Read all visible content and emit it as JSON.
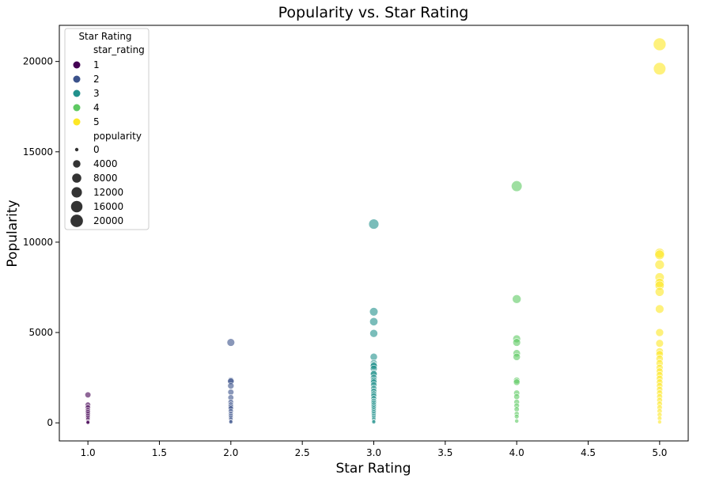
{
  "chart_data": {
    "type": "scatter",
    "title": "Popularity vs. Star Rating",
    "xlabel": "Star Rating",
    "ylabel": "Popularity",
    "xlim": [
      0.8,
      5.2
    ],
    "ylim": [
      -1000,
      22000
    ],
    "xticks": [
      1.0,
      1.5,
      2.0,
      2.5,
      3.0,
      3.5,
      4.0,
      4.5,
      5.0
    ],
    "xtick_labels": [
      "1.0",
      "1.5",
      "2.0",
      "2.5",
      "3.0",
      "3.5",
      "4.0",
      "4.5",
      "5.0"
    ],
    "yticks": [
      0,
      5000,
      10000,
      15000,
      20000
    ],
    "ytick_labels": [
      "0",
      "5000",
      "10000",
      "15000",
      "20000"
    ],
    "grid": false,
    "legend": {
      "title": "Star Rating",
      "placement": "top-left",
      "hue_title": "star_rating",
      "hue_entries": [
        {
          "label": "1",
          "color": "#440154"
        },
        {
          "label": "2",
          "color": "#3b528b"
        },
        {
          "label": "3",
          "color": "#21918c"
        },
        {
          "label": "4",
          "color": "#5ec962"
        },
        {
          "label": "5",
          "color": "#fde725"
        }
      ],
      "size_title": "popularity",
      "size_entries": [
        {
          "label": "0",
          "value": 0
        },
        {
          "label": "4000",
          "value": 4000
        },
        {
          "label": "8000",
          "value": 8000
        },
        {
          "label": "12000",
          "value": 12000
        },
        {
          "label": "16000",
          "value": 16000
        },
        {
          "label": "20000",
          "value": 20000
        }
      ]
    },
    "series": [
      {
        "star_rating": 1,
        "color": "#440154",
        "x": 1.0,
        "popularity": [
          1550,
          1000,
          850,
          700,
          600,
          500,
          400,
          300,
          200,
          100,
          50,
          20
        ]
      },
      {
        "star_rating": 2,
        "color": "#3b528b",
        "x": 2.0,
        "popularity": [
          4450,
          2350,
          2300,
          2050,
          1700,
          1400,
          1150,
          1000,
          900,
          800,
          650,
          500,
          400,
          300,
          200,
          100,
          50
        ]
      },
      {
        "star_rating": 3,
        "color": "#21918c",
        "x": 3.0,
        "popularity": [
          11000,
          6150,
          5600,
          4950,
          3650,
          3300,
          3200,
          3150,
          3000,
          2750,
          2700,
          2500,
          2350,
          2250,
          2100,
          1900,
          1750,
          1600,
          1500,
          1350,
          1200,
          1100,
          1000,
          900,
          800,
          700,
          600,
          500,
          400,
          300,
          200,
          100,
          50
        ]
      },
      {
        "star_rating": 4,
        "color": "#5ec962",
        "x": 4.0,
        "popularity": [
          13100,
          6850,
          4650,
          4450,
          3850,
          3650,
          2350,
          2250,
          1650,
          1450,
          1150,
          950,
          750,
          500,
          350,
          100
        ]
      },
      {
        "star_rating": 5,
        "color": "#fde725",
        "x": 5.0,
        "popularity": [
          20950,
          19600,
          9400,
          9300,
          8750,
          8050,
          7750,
          7600,
          7250,
          6300,
          5000,
          4400,
          3950,
          3800,
          3550,
          3300,
          3050,
          2850,
          2650,
          2450,
          2250,
          2050,
          1850,
          1650,
          1450,
          1250,
          1050,
          850,
          650,
          450,
          250,
          50
        ]
      }
    ]
  }
}
